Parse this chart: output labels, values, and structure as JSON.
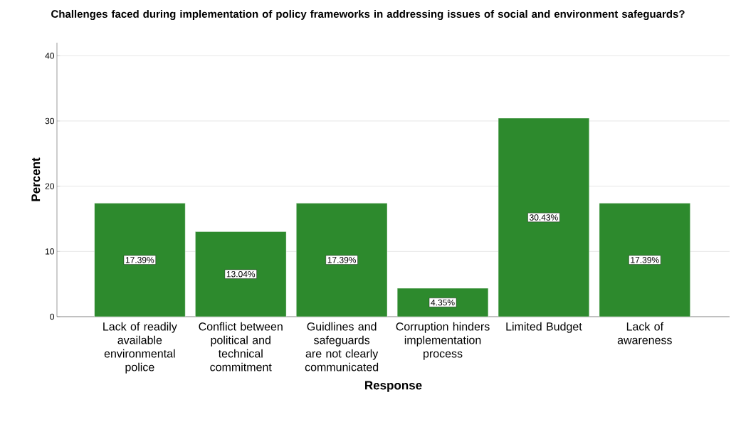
{
  "chart_data": {
    "type": "bar",
    "title": "Challenges  faced during implementation of policy frameworks in addressing issues of social and environment safeguards?",
    "xlabel": "Response",
    "ylabel": "Percent",
    "categories": [
      "Lack of readily available environmental police",
      "Conflict between political and technical commitment",
      "Guidlines and safeguards are not clearly communicated",
      "Corruption hinders implementation process",
      "Limited Budget",
      "Lack of awareness"
    ],
    "values": [
      17.39,
      13.04,
      17.39,
      4.35,
      30.43,
      17.39
    ],
    "value_labels": [
      "17.39%",
      "13.04%",
      "17.39%",
      "4.35%",
      "30.43%",
      "17.39%"
    ],
    "color": "#2d8a2d",
    "ylim": [
      0,
      42
    ],
    "yticks": [
      0,
      10,
      20,
      30,
      40
    ],
    "grid": "y"
  }
}
